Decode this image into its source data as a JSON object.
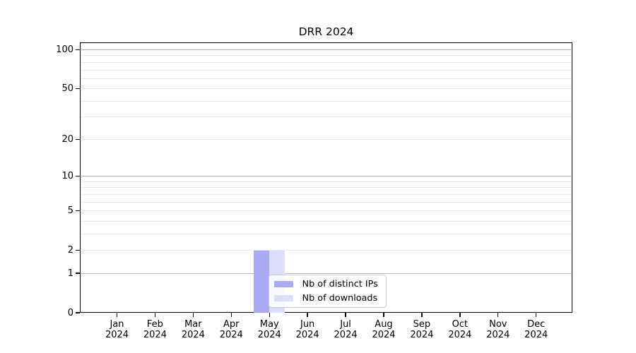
{
  "title": "DRR 2024",
  "chart_data": {
    "type": "bar",
    "title": "DRR 2024",
    "categories": [
      "Jan",
      "Feb",
      "Mar",
      "Apr",
      "May",
      "Jun",
      "Jul",
      "Aug",
      "Sep",
      "Oct",
      "Nov",
      "Dec"
    ],
    "year_label": "2024",
    "series": [
      {
        "name": "Nb of distinct IPs",
        "color": "#a9a9f5",
        "values": [
          0,
          0,
          0,
          0,
          2,
          0,
          0,
          0,
          0,
          0,
          0,
          0
        ]
      },
      {
        "name": "Nb of downloads",
        "color": "#dcdcfb",
        "values": [
          0,
          0,
          0,
          0,
          2,
          0,
          0,
          0,
          0,
          0,
          0,
          0
        ]
      }
    ],
    "xlabel": "",
    "ylabel": "",
    "yscale": "log1p",
    "ylim": [
      0,
      114.7
    ],
    "yticks": [
      0,
      1,
      2,
      5,
      10,
      20,
      50,
      100
    ],
    "ytick_labels": [
      "0",
      "1",
      "2",
      "5",
      "10",
      "20",
      "50",
      "100"
    ],
    "ymajor_gridlines": [
      1,
      10,
      100
    ],
    "yminor_gridlines": [
      2,
      3,
      4,
      5,
      6,
      7,
      8,
      9,
      20,
      30,
      40,
      50,
      60,
      70,
      80,
      90
    ],
    "grid": true,
    "legend": {
      "position": "lower center",
      "entries": [
        "Nb of distinct IPs",
        "Nb of downloads"
      ]
    }
  },
  "colors": {
    "background": "#ffffff",
    "bar_distinct_ips": "#a9a9f5",
    "bar_downloads": "#dcdcfb",
    "major_grid": "#b6b6b6",
    "minor_grid": "#e9e9e9",
    "axis": "#000000",
    "legend_border": "#cccccc"
  }
}
